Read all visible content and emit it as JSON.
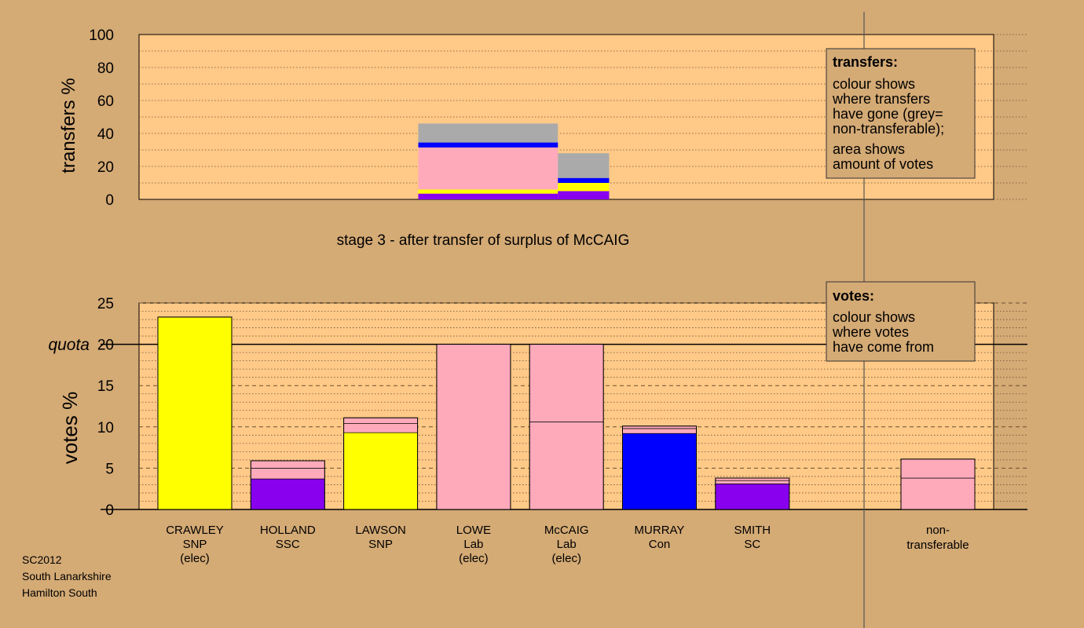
{
  "colors": {
    "background": "#d4aa75",
    "plot_bg": "#ffc987",
    "legend_bg": "#d4aa75",
    "SNP": "#ffff00",
    "SSC": "#8800ee",
    "Lab": "#ffaabb",
    "Con": "#0000ff",
    "SC": "#8800ee",
    "nontransferable": "#aaaaaa"
  },
  "chart_data": [
    {
      "type": "bar",
      "title": "stage 3 - after transfer of surplus of McCAIG",
      "ylabel": "transfers %",
      "ylim": [
        0,
        100
      ],
      "yticks": [
        0,
        20,
        40,
        60,
        80,
        100
      ],
      "grid": true,
      "legend": {
        "placement": "top-right",
        "title": "transfers:",
        "lines": [
          "colour shows",
          "where transfers",
          "have gone (grey=",
          "non-transferable);"
        ],
        "lines2": [
          "area shows",
          "amount of votes"
        ]
      },
      "blocks": [
        {
          "source": "LOWE",
          "x_range": [
            3,
            4.5
          ],
          "segments": [
            {
              "party": "SSC",
              "value": 3.5
            },
            {
              "party": "SNP",
              "value": 2.5
            },
            {
              "party": "Lab",
              "value": 25.5
            },
            {
              "party": "Con",
              "value": 3.0
            },
            {
              "party": "nontransferable",
              "value": 11.5
            }
          ]
        },
        {
          "source": "McCAIG",
          "x_range": [
            4.5,
            5.05
          ],
          "segments": [
            {
              "party": "SSC",
              "value": 5.0
            },
            {
              "party": "SNP",
              "value": 5.0
            },
            {
              "party": "Con",
              "value": 3.0
            },
            {
              "party": "nontransferable",
              "value": 15.0
            }
          ]
        }
      ]
    },
    {
      "type": "bar",
      "ylabel": "votes %",
      "ylim": [
        0,
        25
      ],
      "yticks": [
        0,
        5,
        10,
        15,
        20,
        25
      ],
      "quota": {
        "label": "quota",
        "value": 20
      },
      "legend": {
        "placement": "top-right",
        "title": "votes:",
        "lines": [
          "colour shows",
          "where votes",
          "have come from"
        ]
      },
      "candidates": [
        {
          "name": "CRAWLEY",
          "party_label": "SNP",
          "status": "(elec)",
          "party": "SNP",
          "segments": [
            {
              "party": "SNP",
              "value": 23.3
            }
          ]
        },
        {
          "name": "HOLLAND",
          "party_label": "SSC",
          "status": "",
          "party": "SSC",
          "segments": [
            {
              "party": "SSC",
              "value": 3.7
            },
            {
              "party": "Lab",
              "value": 1.3
            },
            {
              "party": "Lab",
              "value": 0.9
            }
          ]
        },
        {
          "name": "LAWSON",
          "party_label": "SNP",
          "status": "",
          "party": "SNP",
          "segments": [
            {
              "party": "SNP",
              "value": 9.3
            },
            {
              "party": "Lab",
              "value": 1.1
            },
            {
              "party": "Lab",
              "value": 0.7
            }
          ]
        },
        {
          "name": "LOWE",
          "party_label": "Lab",
          "status": "(elec)",
          "party": "Lab",
          "segments": [
            {
              "party": "Lab",
              "value": 20.0
            }
          ]
        },
        {
          "name": "McCAIG",
          "party_label": "Lab",
          "status": "(elec)",
          "party": "Lab",
          "segments": [
            {
              "party": "Lab",
              "value": 10.6
            },
            {
              "party": "Lab",
              "value": 9.4
            }
          ]
        },
        {
          "name": "MURRAY",
          "party_label": "Con",
          "status": "",
          "party": "Con",
          "segments": [
            {
              "party": "Con",
              "value": 9.2
            },
            {
              "party": "Lab",
              "value": 0.6
            },
            {
              "party": "Lab",
              "value": 0.3
            }
          ]
        },
        {
          "name": "SMITH",
          "party_label": "SC",
          "status": "",
          "party": "SC",
          "segments": [
            {
              "party": "SC",
              "value": 3.1
            },
            {
              "party": "Lab",
              "value": 0.4
            },
            {
              "party": "Lab",
              "value": 0.3
            }
          ]
        }
      ],
      "nontransferable": {
        "label_line1": "non-",
        "label_line2": "transferable",
        "segments": [
          {
            "party": "Lab",
            "value": 3.8
          },
          {
            "party": "Lab",
            "value": 2.3
          }
        ]
      }
    }
  ],
  "footer": {
    "line1": "SC2012",
    "line2": "South Lanarkshire",
    "line3": "Hamilton South"
  }
}
